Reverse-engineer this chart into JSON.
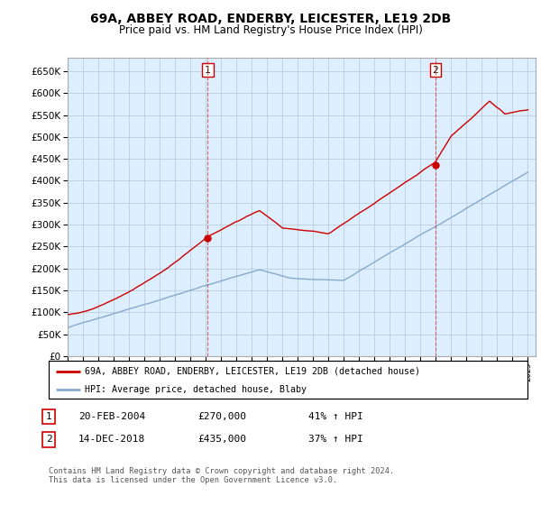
{
  "title": "69A, ABBEY ROAD, ENDERBY, LEICESTER, LE19 2DB",
  "subtitle": "Price paid vs. HM Land Registry's House Price Index (HPI)",
  "ylim": [
    0,
    680000
  ],
  "yticks": [
    0,
    50000,
    100000,
    150000,
    200000,
    250000,
    300000,
    350000,
    400000,
    450000,
    500000,
    550000,
    600000,
    650000
  ],
  "sale1_year": 2004.13,
  "sale1_price": 270000,
  "sale2_year": 2018.96,
  "sale2_price": 435000,
  "red_line_color": "#cc0000",
  "blue_line_color": "#88aacc",
  "grid_color": "#bbccdd",
  "plot_bg": "#ddeeff",
  "legend_text1": "69A, ABBEY ROAD, ENDERBY, LEICESTER, LE19 2DB (detached house)",
  "legend_text2": "HPI: Average price, detached house, Blaby",
  "note1_label": "1",
  "note1_date": "20-FEB-2004",
  "note1_price": "£270,000",
  "note1_hpi": "41% ↑ HPI",
  "note2_label": "2",
  "note2_date": "14-DEC-2018",
  "note2_price": "£435,000",
  "note2_hpi": "37% ↑ HPI",
  "footer": "Contains HM Land Registry data © Crown copyright and database right 2024.\nThis data is licensed under the Open Government Licence v3.0."
}
